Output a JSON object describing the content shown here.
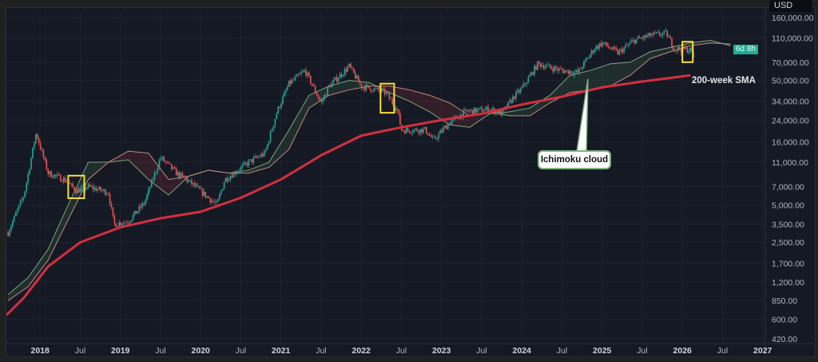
{
  "header": {
    "currency": "USD",
    "countdown_badge": "6d 8h"
  },
  "annotations": {
    "sma_label": "200-week SMA",
    "cloud_label": "Ichimoku cloud"
  },
  "colors": {
    "background": "#151924",
    "up": "#26a69a",
    "down": "#ef5350",
    "sma": "#d32f3f",
    "span_a": "#7fa37f",
    "span_b": "#c98585",
    "highlight": "#f5e03a",
    "badge": "#22ab94"
  },
  "chart_data": {
    "type": "candlestick",
    "title": "",
    "yscale": "log",
    "ylim": [
      400,
      175000
    ],
    "xlim": [
      2017.58,
      2027.1
    ],
    "y_ticks": [
      "160,000.00",
      "110,000.00",
      "70,000.00",
      "50,000.00",
      "34,000.00",
      "24,000.00",
      "16,000.00",
      "11,000.00",
      "7,000.00",
      "5,000.00",
      "3,500.00",
      "2,500.00",
      "1,700.00",
      "1,200.00",
      "850.00",
      "600.00",
      "420.00"
    ],
    "y_tick_values": [
      160000,
      110000,
      70000,
      50000,
      34000,
      24000,
      16000,
      11000,
      7000,
      5000,
      3500,
      2500,
      1700,
      1200,
      850,
      600,
      420
    ],
    "x_ticks": [
      {
        "label": "2018",
        "x": 2018.0,
        "major": true
      },
      {
        "label": "Jul",
        "x": 2018.5
      },
      {
        "label": "2019",
        "x": 2019.0,
        "major": true
      },
      {
        "label": "Jul",
        "x": 2019.5
      },
      {
        "label": "2020",
        "x": 2020.0,
        "major": true
      },
      {
        "label": "Jul",
        "x": 2020.5
      },
      {
        "label": "2021",
        "x": 2021.0,
        "major": true
      },
      {
        "label": "Jul",
        "x": 2021.5
      },
      {
        "label": "2022",
        "x": 2022.0,
        "major": true
      },
      {
        "label": "Jul",
        "x": 2022.5
      },
      {
        "label": "2023",
        "x": 2023.0,
        "major": true
      },
      {
        "label": "Jul",
        "x": 2023.5
      },
      {
        "label": "2024",
        "x": 2024.0,
        "major": true
      },
      {
        "label": "Jul",
        "x": 2024.5
      },
      {
        "label": "2025",
        "x": 2025.0,
        "major": true
      },
      {
        "label": "Jul",
        "x": 2025.5
      },
      {
        "label": "2026",
        "x": 2026.0,
        "major": true
      },
      {
        "label": "Jul",
        "x": 2026.5
      },
      {
        "label": "2027",
        "x": 2027.0,
        "major": true
      }
    ],
    "price_path": [
      [
        2017.6,
        3000
      ],
      [
        2017.8,
        6000
      ],
      [
        2017.95,
        19000
      ],
      [
        2018.1,
        9000
      ],
      [
        2018.3,
        8000
      ],
      [
        2018.45,
        6500
      ],
      [
        2018.6,
        7000
      ],
      [
        2018.85,
        6300
      ],
      [
        2018.92,
        3500
      ],
      [
        2019.1,
        3700
      ],
      [
        2019.3,
        5200
      ],
      [
        2019.5,
        12000
      ],
      [
        2019.7,
        9000
      ],
      [
        2019.9,
        7300
      ],
      [
        2020.2,
        5000
      ],
      [
        2020.3,
        8000
      ],
      [
        2020.6,
        11000
      ],
      [
        2020.8,
        13000
      ],
      [
        2020.95,
        28000
      ],
      [
        2021.1,
        47000
      ],
      [
        2021.3,
        60000
      ],
      [
        2021.5,
        33000
      ],
      [
        2021.6,
        45000
      ],
      [
        2021.85,
        65000
      ],
      [
        2022.0,
        45000
      ],
      [
        2022.3,
        40000
      ],
      [
        2022.45,
        29000
      ],
      [
        2022.5,
        20000
      ],
      [
        2022.8,
        20000
      ],
      [
        2022.9,
        16500
      ],
      [
        2023.1,
        23000
      ],
      [
        2023.3,
        28000
      ],
      [
        2023.6,
        29500
      ],
      [
        2023.75,
        27000
      ],
      [
        2023.9,
        37000
      ],
      [
        2024.0,
        43000
      ],
      [
        2024.2,
        68000
      ],
      [
        2024.5,
        60000
      ],
      [
        2024.7,
        58000
      ],
      [
        2024.9,
        90000
      ],
      [
        2025.0,
        100000
      ],
      [
        2025.2,
        83000
      ],
      [
        2025.4,
        105000
      ],
      [
        2025.6,
        115000
      ],
      [
        2025.8,
        120000
      ],
      [
        2025.9,
        90000
      ],
      [
        2026.1,
        88000
      ],
      [
        2026.15,
        76000
      ]
    ],
    "series": [
      {
        "name": "200-week SMA",
        "points": [
          [
            2017.58,
            650
          ],
          [
            2017.8,
            900
          ],
          [
            2018.1,
            1600
          ],
          [
            2018.5,
            2500
          ],
          [
            2019.0,
            3300
          ],
          [
            2019.5,
            3900
          ],
          [
            2020.0,
            4400
          ],
          [
            2020.5,
            5700
          ],
          [
            2021.0,
            8000
          ],
          [
            2021.5,
            12500
          ],
          [
            2022.0,
            18000
          ],
          [
            2022.5,
            21000
          ],
          [
            2023.0,
            24000
          ],
          [
            2023.5,
            27000
          ],
          [
            2024.0,
            32000
          ],
          [
            2024.5,
            37000
          ],
          [
            2025.0,
            44000
          ],
          [
            2025.5,
            49000
          ],
          [
            2026.1,
            55000
          ]
        ]
      },
      {
        "name": "Span A",
        "x": [
          2017.6,
          2017.85,
          2018.1,
          2018.35,
          2018.6,
          2018.85,
          2019.1,
          2019.35,
          2019.6,
          2019.85,
          2020.1,
          2020.35,
          2020.6,
          2020.85,
          2021.1,
          2021.35,
          2021.6,
          2021.85,
          2022.1,
          2022.35,
          2022.6,
          2022.85,
          2023.1,
          2023.35,
          2023.6,
          2023.85,
          2024.1,
          2024.35,
          2024.6,
          2024.85,
          2025.1,
          2025.35,
          2025.6,
          2025.85,
          2026.1,
          2026.35,
          2026.6
        ],
        "values": [
          950,
          1300,
          2200,
          5000,
          11000,
          11000,
          11500,
          8000,
          6000,
          8500,
          9500,
          9000,
          9500,
          11000,
          20000,
          38000,
          45000,
          50000,
          48000,
          40000,
          34000,
          28000,
          22000,
          21000,
          27000,
          28000,
          30000,
          38000,
          55000,
          60000,
          68000,
          70000,
          85000,
          92000,
          100000,
          105000,
          95000
        ]
      },
      {
        "name": "Span B",
        "x": [
          2017.6,
          2017.85,
          2018.1,
          2018.35,
          2018.6,
          2018.85,
          2019.1,
          2019.35,
          2019.6,
          2019.85,
          2020.1,
          2020.35,
          2020.6,
          2020.85,
          2021.1,
          2021.35,
          2021.6,
          2021.85,
          2022.1,
          2022.35,
          2022.6,
          2022.85,
          2023.1,
          2023.35,
          2023.6,
          2023.85,
          2024.1,
          2024.35,
          2024.6,
          2024.85,
          2025.1,
          2025.35,
          2025.6,
          2025.85,
          2026.1,
          2026.35,
          2026.6
        ],
        "values": [
          850,
          1100,
          1800,
          3800,
          8000,
          11000,
          13500,
          13000,
          8000,
          8500,
          9500,
          9000,
          9000,
          10000,
          14000,
          30000,
          38000,
          42000,
          45000,
          45000,
          42000,
          38000,
          33000,
          26000,
          28000,
          26000,
          26000,
          33000,
          40000,
          42000,
          45000,
          55000,
          75000,
          85000,
          95000,
          100000,
          98000
        ]
      }
    ],
    "highlights": [
      [
        2018.35,
        2018.55
      ],
      [
        2022.24,
        2022.41
      ],
      [
        2026.0,
        2026.13
      ]
    ],
    "grid": true,
    "legend": "none"
  }
}
